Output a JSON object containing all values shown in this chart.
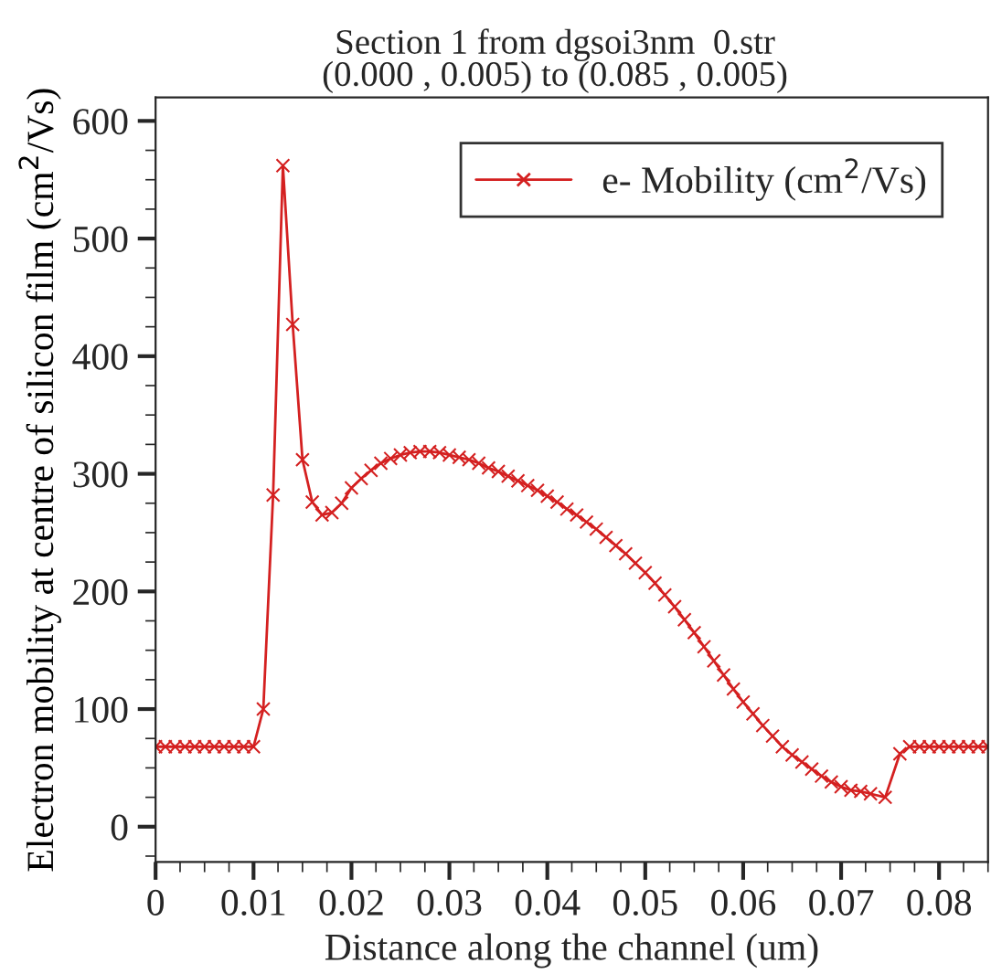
{
  "chart_data": {
    "type": "line",
    "title": "Section 1 from dgsoi3nm  0.str",
    "subtitle": "(0.000 , 0.005) to (0.085 , 0.005)",
    "xlabel": "Distance along the channel (um)",
    "ylabel": "Electron mobility at centre of silicon film (cm$^{2}$/Vs)",
    "x": [
      0,
      0.001,
      0.002,
      0.003,
      0.004,
      0.005,
      0.006,
      0.007,
      0.008,
      0.009,
      0.01,
      0.011,
      0.012,
      0.013,
      0.014,
      0.015,
      0.016,
      0.017,
      0.018,
      0.019,
      0.02,
      0.021,
      0.022,
      0.023,
      0.024,
      0.025,
      0.026,
      0.027,
      0.028,
      0.029,
      0.03,
      0.031,
      0.032,
      0.033,
      0.034,
      0.035,
      0.036,
      0.037,
      0.038,
      0.039,
      0.04,
      0.041,
      0.042,
      0.043,
      0.044,
      0.045,
      0.046,
      0.047,
      0.048,
      0.049,
      0.05,
      0.051,
      0.052,
      0.053,
      0.054,
      0.055,
      0.056,
      0.057,
      0.058,
      0.059,
      0.06,
      0.061,
      0.062,
      0.063,
      0.064,
      0.065,
      0.066,
      0.067,
      0.068,
      0.069,
      0.07,
      0.071,
      0.072,
      0.073,
      0.0745,
      0.076,
      0.077,
      0.078,
      0.079,
      0.08,
      0.081,
      0.082,
      0.083,
      0.084,
      0.085
    ],
    "series": [
      {
        "name": "e- Mobility (cm$^{2}$/Vs)",
        "color": "#d42020",
        "values": [
          68,
          68,
          68,
          68,
          68,
          68,
          68,
          68,
          68,
          68,
          68,
          100,
          282,
          562,
          427,
          312,
          276,
          265,
          267,
          275,
          288,
          296,
          303,
          309,
          313,
          316,
          318,
          319,
          319,
          318,
          316,
          314,
          312,
          309,
          305,
          302,
          298,
          294,
          290,
          286,
          281,
          276,
          270,
          265,
          259,
          253,
          246,
          239,
          232,
          224,
          216,
          207,
          197,
          187,
          176,
          165,
          153,
          141,
          129,
          117,
          106,
          96,
          86,
          77,
          68,
          61,
          55,
          49,
          43,
          38,
          34,
          31,
          30,
          28,
          25,
          62,
          68,
          68,
          68,
          68,
          68,
          68,
          68,
          68,
          68
        ]
      }
    ],
    "xlim": [
      0,
      0.085
    ],
    "ylim": [
      -30,
      620
    ],
    "xticks": [
      0,
      0.01,
      0.02,
      0.03,
      0.04,
      0.05,
      0.06,
      0.07,
      0.08
    ],
    "yticks": [
      0,
      100,
      200,
      300,
      400,
      500,
      600
    ],
    "legend": "top right",
    "marker": "cross",
    "line_style": "solid",
    "grid": false
  }
}
